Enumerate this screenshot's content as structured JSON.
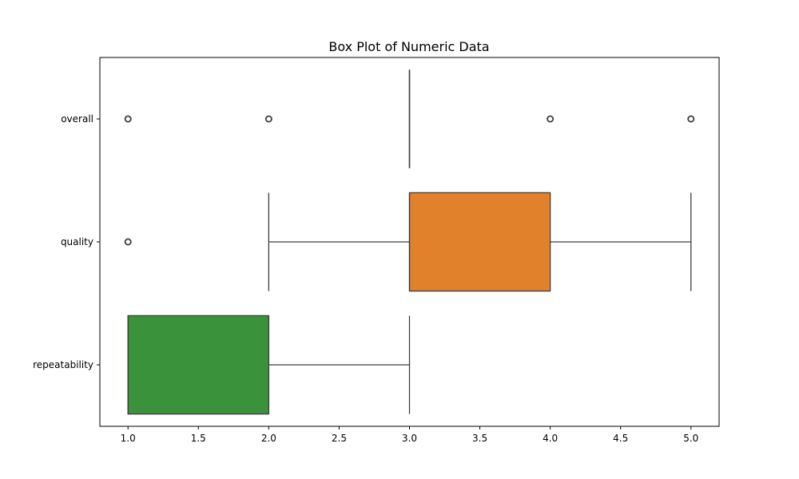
{
  "chart_data": {
    "type": "box",
    "title": "Box Plot of Numeric Data",
    "xlabel": "",
    "ylabel": "",
    "xlim": [
      0.8,
      5.2
    ],
    "xticks": [
      "1.0",
      "1.5",
      "2.0",
      "2.5",
      "3.0",
      "3.5",
      "4.0",
      "4.5",
      "5.0"
    ],
    "grid": false,
    "categories": [
      "overall",
      "quality",
      "repeatability"
    ],
    "series": [
      {
        "category": "overall",
        "color": "#1f77b4",
        "whisker_low": 3.0,
        "q1": 3.0,
        "median": 3.0,
        "q3": 3.0,
        "whisker_high": 3.0,
        "outliers": [
          1.0,
          2.0,
          4.0,
          5.0
        ]
      },
      {
        "category": "quality",
        "color": "#e1812c",
        "whisker_low": 2.0,
        "q1": 3.0,
        "median": 3.0,
        "q3": 4.0,
        "whisker_high": 5.0,
        "outliers": [
          1.0
        ]
      },
      {
        "category": "repeatability",
        "color": "#3a923a",
        "whisker_low": 1.0,
        "q1": 1.0,
        "median": 1.0,
        "q3": 2.0,
        "whisker_high": 3.0,
        "outliers": []
      }
    ]
  }
}
